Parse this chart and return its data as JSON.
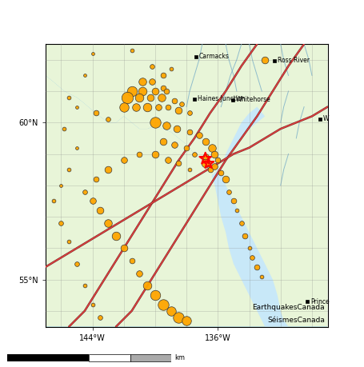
{
  "lon_min": -147,
  "lon_max": -129,
  "lat_min": 53.5,
  "lat_max": 62.5,
  "ocean_color": "#8EC8E8",
  "land_color": "#E8F5D8",
  "fjord_color": "#C8E8F8",
  "grid_color": "#888888",
  "earthquake_color": "#FFA500",
  "earthquake_edge": "#333333",
  "fig_bg": "#ffffff",
  "cities": [
    {
      "name": "Carmacks",
      "lon": -137.4,
      "lat": 62.1,
      "halign": "right",
      "marker": true
    },
    {
      "name": "Ross River",
      "lon": -132.4,
      "lat": 61.98,
      "halign": "right",
      "marker": true
    },
    {
      "name": "Haines Junction",
      "lon": -137.5,
      "lat": 60.75,
      "halign": "right",
      "marker": true
    },
    {
      "name": "Whitehorse",
      "lon": -135.05,
      "lat": 60.72,
      "halign": "right",
      "marker": true
    },
    {
      "name": "W",
      "lon": -129.5,
      "lat": 60.12,
      "halign": "right",
      "marker": true
    },
    {
      "name": "Prince",
      "lon": -130.3,
      "lat": 54.3,
      "halign": "right",
      "marker": true
    }
  ],
  "earthquakes": [
    {
      "lon": -141.5,
      "lat": 62.3,
      "size": 10
    },
    {
      "lon": -144.0,
      "lat": 62.2,
      "size": 8
    },
    {
      "lon": -140.2,
      "lat": 61.8,
      "size": 12
    },
    {
      "lon": -139.0,
      "lat": 61.7,
      "size": 10
    },
    {
      "lon": -144.5,
      "lat": 61.5,
      "size": 8
    },
    {
      "lon": -139.5,
      "lat": 61.5,
      "size": 14
    },
    {
      "lon": -140.8,
      "lat": 61.3,
      "size": 20
    },
    {
      "lon": -140.2,
      "lat": 61.3,
      "size": 16
    },
    {
      "lon": -139.5,
      "lat": 61.1,
      "size": 14
    },
    {
      "lon": -141.5,
      "lat": 61.0,
      "size": 26
    },
    {
      "lon": -140.8,
      "lat": 61.0,
      "size": 22
    },
    {
      "lon": -140.0,
      "lat": 61.0,
      "size": 18
    },
    {
      "lon": -139.3,
      "lat": 61.0,
      "size": 14
    },
    {
      "lon": -141.8,
      "lat": 60.8,
      "size": 30
    },
    {
      "lon": -141.0,
      "lat": 60.8,
      "size": 22
    },
    {
      "lon": -140.3,
      "lat": 60.8,
      "size": 18
    },
    {
      "lon": -139.6,
      "lat": 60.8,
      "size": 20
    },
    {
      "lon": -138.8,
      "lat": 60.7,
      "size": 14
    },
    {
      "lon": -138.3,
      "lat": 60.6,
      "size": 12
    },
    {
      "lon": -142.0,
      "lat": 60.5,
      "size": 24
    },
    {
      "lon": -141.2,
      "lat": 60.5,
      "size": 20
    },
    {
      "lon": -140.5,
      "lat": 60.5,
      "size": 22
    },
    {
      "lon": -139.8,
      "lat": 60.5,
      "size": 16
    },
    {
      "lon": -139.2,
      "lat": 60.5,
      "size": 14
    },
    {
      "lon": -138.5,
      "lat": 60.4,
      "size": 18
    },
    {
      "lon": -137.8,
      "lat": 60.3,
      "size": 12
    },
    {
      "lon": -143.8,
      "lat": 60.3,
      "size": 14
    },
    {
      "lon": -143.0,
      "lat": 60.1,
      "size": 12
    },
    {
      "lon": -140.0,
      "lat": 60.0,
      "size": 28
    },
    {
      "lon": -139.3,
      "lat": 59.9,
      "size": 20
    },
    {
      "lon": -138.6,
      "lat": 59.8,
      "size": 18
    },
    {
      "lon": -137.8,
      "lat": 59.7,
      "size": 14
    },
    {
      "lon": -137.2,
      "lat": 59.6,
      "size": 16
    },
    {
      "lon": -136.8,
      "lat": 59.4,
      "size": 18
    },
    {
      "lon": -136.4,
      "lat": 59.2,
      "size": 20
    },
    {
      "lon": -136.2,
      "lat": 59.0,
      "size": 18
    },
    {
      "lon": -136.0,
      "lat": 58.8,
      "size": 14
    },
    {
      "lon": -136.8,
      "lat": 58.9,
      "size": 16
    },
    {
      "lon": -137.5,
      "lat": 59.0,
      "size": 12
    },
    {
      "lon": -138.0,
      "lat": 59.2,
      "size": 14
    },
    {
      "lon": -138.8,
      "lat": 59.3,
      "size": 16
    },
    {
      "lon": -139.5,
      "lat": 59.4,
      "size": 18
    },
    {
      "lon": -136.5,
      "lat": 58.5,
      "size": 14
    },
    {
      "lon": -136.8,
      "lat": 58.7,
      "size": 22
    },
    {
      "lon": -136.2,
      "lat": 58.6,
      "size": 16
    },
    {
      "lon": -135.8,
      "lat": 58.4,
      "size": 14
    },
    {
      "lon": -135.5,
      "lat": 58.2,
      "size": 18
    },
    {
      "lon": -135.3,
      "lat": 57.8,
      "size": 12
    },
    {
      "lon": -135.0,
      "lat": 57.5,
      "size": 14
    },
    {
      "lon": -134.8,
      "lat": 57.2,
      "size": 10
    },
    {
      "lon": -134.5,
      "lat": 56.8,
      "size": 12
    },
    {
      "lon": -134.3,
      "lat": 56.4,
      "size": 14
    },
    {
      "lon": -134.0,
      "lat": 56.0,
      "size": 10
    },
    {
      "lon": -133.8,
      "lat": 55.7,
      "size": 12
    },
    {
      "lon": -133.5,
      "lat": 55.4,
      "size": 14
    },
    {
      "lon": -133.2,
      "lat": 55.1,
      "size": 10
    },
    {
      "lon": -137.8,
      "lat": 58.5,
      "size": 10
    },
    {
      "lon": -138.5,
      "lat": 58.7,
      "size": 14
    },
    {
      "lon": -139.2,
      "lat": 58.8,
      "size": 16
    },
    {
      "lon": -140.0,
      "lat": 59.0,
      "size": 18
    },
    {
      "lon": -141.0,
      "lat": 59.0,
      "size": 14
    },
    {
      "lon": -142.0,
      "lat": 58.8,
      "size": 16
    },
    {
      "lon": -143.0,
      "lat": 58.5,
      "size": 18
    },
    {
      "lon": -143.8,
      "lat": 58.2,
      "size": 14
    },
    {
      "lon": -144.5,
      "lat": 57.8,
      "size": 12
    },
    {
      "lon": -144.0,
      "lat": 57.5,
      "size": 16
    },
    {
      "lon": -143.5,
      "lat": 57.2,
      "size": 18
    },
    {
      "lon": -143.0,
      "lat": 56.8,
      "size": 20
    },
    {
      "lon": -142.5,
      "lat": 56.4,
      "size": 22
    },
    {
      "lon": -142.0,
      "lat": 56.0,
      "size": 18
    },
    {
      "lon": -141.5,
      "lat": 55.6,
      "size": 14
    },
    {
      "lon": -141.0,
      "lat": 55.2,
      "size": 16
    },
    {
      "lon": -140.5,
      "lat": 54.8,
      "size": 22
    },
    {
      "lon": -140.0,
      "lat": 54.5,
      "size": 26
    },
    {
      "lon": -139.5,
      "lat": 54.2,
      "size": 28
    },
    {
      "lon": -139.0,
      "lat": 54.0,
      "size": 24
    },
    {
      "lon": -138.5,
      "lat": 53.8,
      "size": 28
    },
    {
      "lon": -138.0,
      "lat": 53.7,
      "size": 24
    },
    {
      "lon": -145.5,
      "lat": 60.8,
      "size": 10
    },
    {
      "lon": -145.0,
      "lat": 60.5,
      "size": 8
    },
    {
      "lon": -145.8,
      "lat": 59.8,
      "size": 10
    },
    {
      "lon": -145.0,
      "lat": 59.2,
      "size": 8
    },
    {
      "lon": -145.5,
      "lat": 58.5,
      "size": 10
    },
    {
      "lon": -146.0,
      "lat": 58.0,
      "size": 8
    },
    {
      "lon": -146.5,
      "lat": 57.5,
      "size": 10
    },
    {
      "lon": -146.0,
      "lat": 56.8,
      "size": 12
    },
    {
      "lon": -145.5,
      "lat": 56.2,
      "size": 10
    },
    {
      "lon": -145.0,
      "lat": 55.5,
      "size": 12
    },
    {
      "lon": -144.5,
      "lat": 54.8,
      "size": 10
    },
    {
      "lon": -144.0,
      "lat": 54.2,
      "size": 10
    },
    {
      "lon": -143.5,
      "lat": 53.8,
      "size": 12
    },
    {
      "lon": -133.0,
      "lat": 62.0,
      "size": 18
    }
  ],
  "star_lon": -136.8,
  "star_lat": 58.85,
  "star_size": 120,
  "fault_lines": [
    [
      [
        -130.5,
        62.5
      ],
      [
        -131.5,
        61.8
      ],
      [
        -132.5,
        61.0
      ],
      [
        -133.5,
        60.2
      ],
      [
        -134.5,
        59.5
      ],
      [
        -135.5,
        58.8
      ],
      [
        -136.5,
        58.0
      ],
      [
        -137.5,
        57.2
      ],
      [
        -138.5,
        56.4
      ],
      [
        -139.5,
        55.6
      ],
      [
        -140.5,
        54.8
      ],
      [
        -141.5,
        54.0
      ],
      [
        -142.5,
        53.5
      ]
    ],
    [
      [
        -133.5,
        62.5
      ],
      [
        -134.5,
        61.8
      ],
      [
        -135.5,
        61.0
      ],
      [
        -136.5,
        60.3
      ],
      [
        -137.5,
        59.5
      ],
      [
        -138.5,
        58.8
      ],
      [
        -139.5,
        58.0
      ],
      [
        -140.5,
        57.2
      ],
      [
        -141.5,
        56.4
      ],
      [
        -142.5,
        55.6
      ],
      [
        -143.5,
        54.8
      ],
      [
        -144.5,
        54.0
      ],
      [
        -145.5,
        53.5
      ]
    ],
    [
      [
        -129.0,
        60.5
      ],
      [
        -130.0,
        60.2
      ],
      [
        -131.0,
        60.0
      ],
      [
        -132.0,
        59.8
      ],
      [
        -133.0,
        59.5
      ],
      [
        -134.0,
        59.2
      ],
      [
        -135.0,
        59.0
      ],
      [
        -136.0,
        58.7
      ],
      [
        -137.0,
        58.4
      ],
      [
        -138.0,
        58.1
      ],
      [
        -139.0,
        57.8
      ],
      [
        -140.0,
        57.5
      ],
      [
        -141.0,
        57.2
      ],
      [
        -142.0,
        56.9
      ],
      [
        -143.0,
        56.6
      ],
      [
        -144.0,
        56.3
      ],
      [
        -145.0,
        56.0
      ],
      [
        -146.0,
        55.7
      ],
      [
        -147.0,
        55.4
      ]
    ]
  ],
  "lat_ticks": [
    55,
    60
  ],
  "lon_ticks": [
    -144,
    -136
  ],
  "title1": "EarthquakesCanada",
  "title2": "SéismesCanada"
}
